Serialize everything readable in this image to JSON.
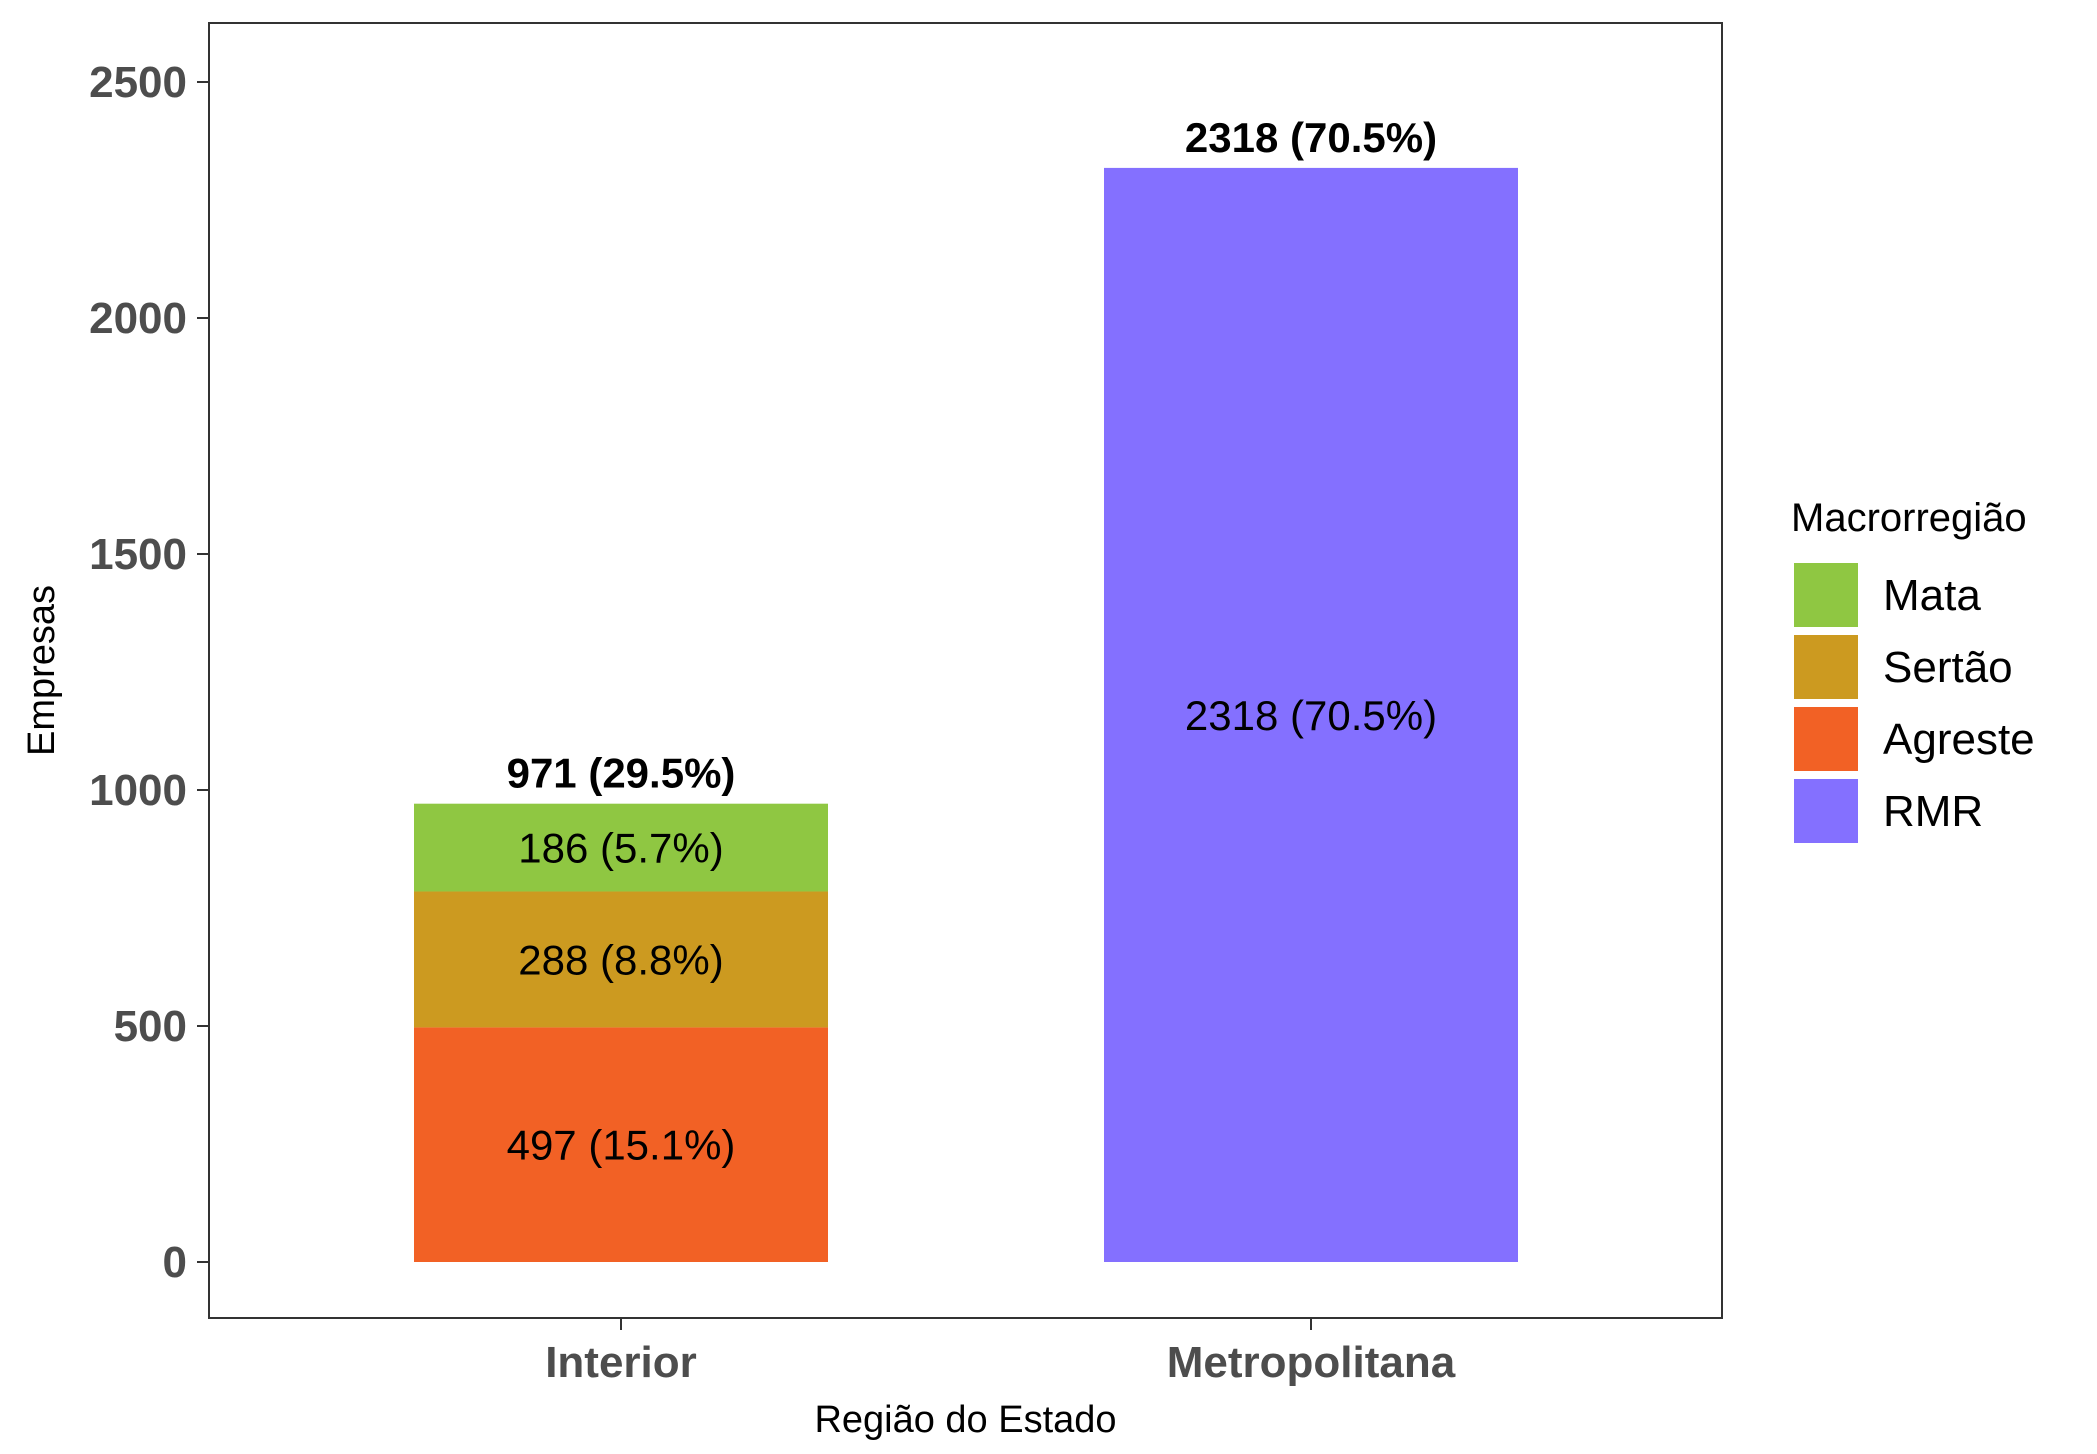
{
  "chart_data": {
    "type": "bar",
    "stacked": true,
    "xlabel": "Região do Estado",
    "ylabel": "Empresas",
    "ylim": [
      0,
      2618
    ],
    "yticks": [
      0,
      500,
      1000,
      1500,
      2000,
      2500
    ],
    "grid": false,
    "legend_position": "right",
    "categories": [
      "Interior",
      "Metropolitana"
    ],
    "series": [
      {
        "name": "Agreste",
        "color": "#F26125",
        "values": [
          497,
          0
        ],
        "labels": [
          "497 (15.1%)",
          ""
        ]
      },
      {
        "name": "Sertão",
        "color": "#CC9A20",
        "values": [
          288,
          0
        ],
        "labels": [
          "288 (8.8%)",
          ""
        ]
      },
      {
        "name": "Mata",
        "color": "#8FC742",
        "values": [
          186,
          0
        ],
        "labels": [
          "186 (5.7%)",
          ""
        ]
      },
      {
        "name": "RMR",
        "color": "#8470FF",
        "values": [
          0,
          2318
        ],
        "labels": [
          "",
          "2318 (70.5%)"
        ]
      }
    ],
    "totals": [
      {
        "value": 971,
        "label": "971 (29.5%)"
      },
      {
        "value": 2318,
        "label": "2318 (70.5%)"
      }
    ],
    "legend": {
      "title": "Macrorregião",
      "items": [
        {
          "name": "Mata",
          "color": "#8FC742"
        },
        {
          "name": "Sertão",
          "color": "#CC9A20"
        },
        {
          "name": "Agreste",
          "color": "#F26125"
        },
        {
          "name": "RMR",
          "color": "#8470FF"
        }
      ]
    }
  }
}
